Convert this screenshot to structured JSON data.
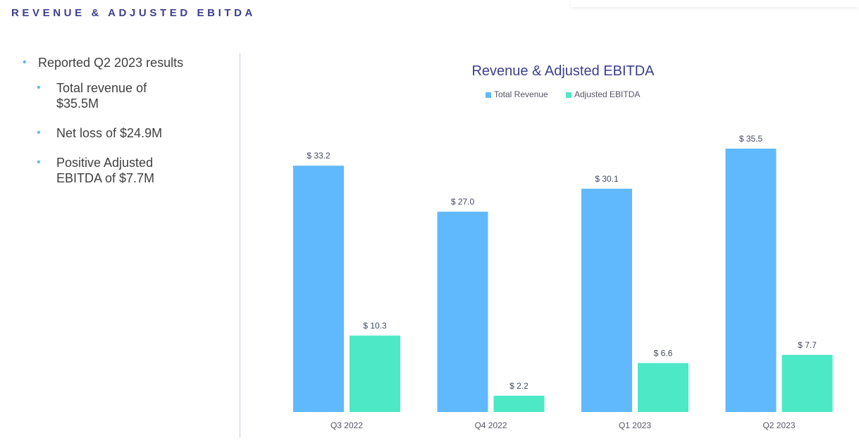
{
  "page": {
    "title": "REVENUE & ADJUSTED EBITDA"
  },
  "bullets": {
    "main": "Reported Q2 2023 results",
    "sub": [
      "Total revenue of $35.5M",
      "Net loss of $24.9M",
      "Positive Adjusted EBITDA of $7.7M"
    ]
  },
  "colors": {
    "title": "#3b3f8f",
    "bullet": "#5fb8f8",
    "total_revenue": "#61b9fd",
    "adjusted_ebitda": "#4de8c6"
  },
  "chart_data": {
    "type": "bar",
    "title": "Revenue & Adjusted EBITDA",
    "categories": [
      "Q3 2022",
      "Q4 2022",
      "Q1 2023",
      "Q2 2023"
    ],
    "series": [
      {
        "name": "Total Revenue",
        "values": [
          33.2,
          27.0,
          30.1,
          35.5
        ],
        "labels": [
          "$ 33.2",
          "$ 27.0",
          "$ 30.1",
          "$ 35.5"
        ]
      },
      {
        "name": "Adjusted EBITDA",
        "values": [
          10.3,
          2.2,
          6.6,
          7.7
        ],
        "labels": [
          "$ 10.3",
          "$ 2.2",
          "$ 6.6",
          "$ 7.7"
        ]
      }
    ],
    "ylim": [
      0,
      35.5
    ],
    "legend": "top-center",
    "grid": false
  }
}
